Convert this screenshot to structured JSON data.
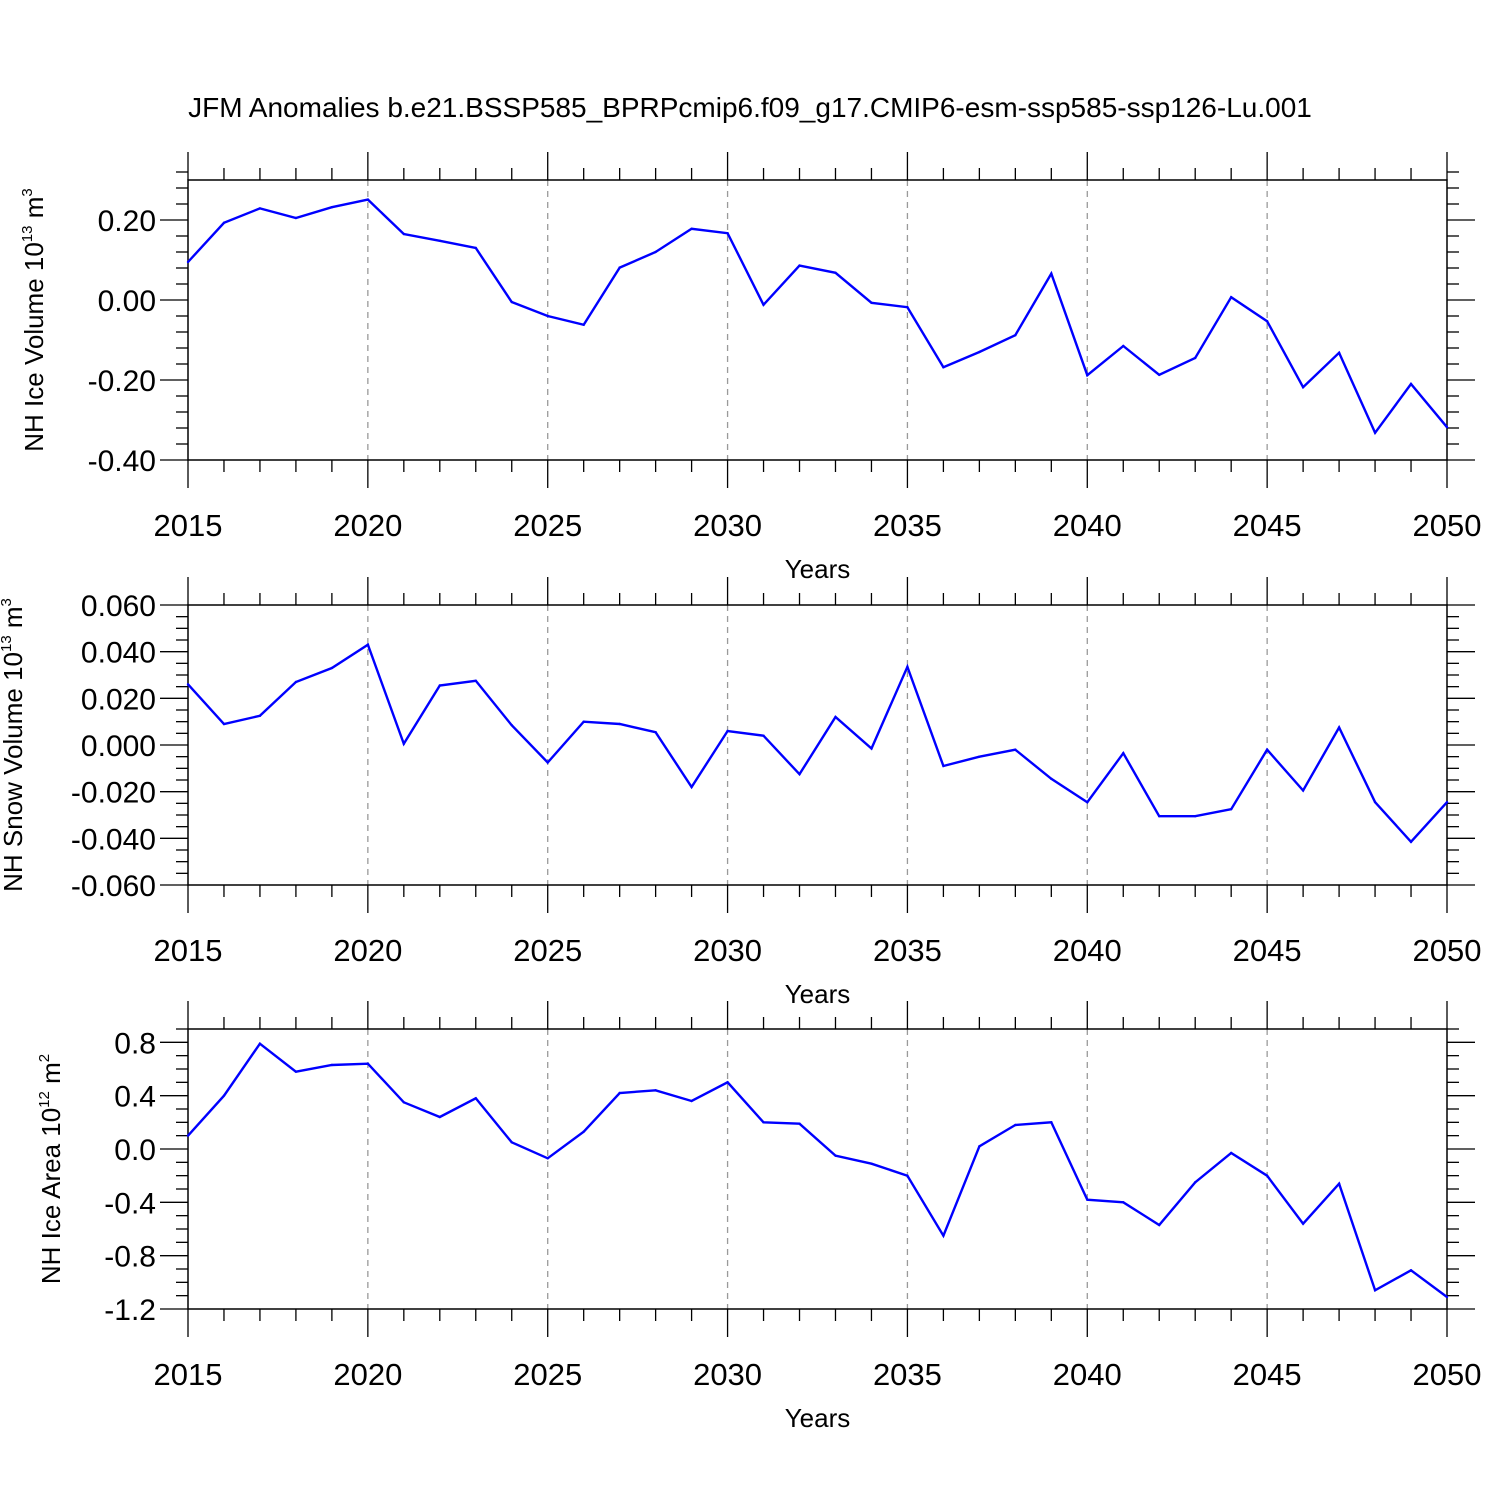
{
  "title": "JFM Anomalies b.e21.BSSP585_BPRPcmip6.f09_g17.CMIP6-esm-ssp585-ssp126-Lu.001",
  "colors": {
    "line": "#0000ff",
    "axis": "#000000",
    "grid": "#9a9a9a"
  },
  "chart_data": [
    {
      "type": "line",
      "ylabel_main": "NH Ice Volume 10",
      "ylabel_exp": "13",
      "ylabel_unit": " m",
      "ylabel_unit_exp": "3",
      "xlabel": "Years",
      "xlim": [
        2015,
        2050
      ],
      "ylim": [
        -0.4,
        0.3
      ],
      "yticks": [
        -0.4,
        -0.2,
        0.0,
        0.2
      ],
      "ytick_labels": [
        "-0.40",
        "-0.20",
        "0.00",
        "0.20"
      ],
      "yminor_step": 0.04,
      "xticks": [
        2015,
        2020,
        2025,
        2030,
        2035,
        2040,
        2045,
        2050
      ],
      "xtick_labels": [
        "2015",
        "2020",
        "2025",
        "2030",
        "2035",
        "2040",
        "2045",
        "2050"
      ],
      "x": [
        2015,
        2016,
        2017,
        2018,
        2019,
        2020,
        2021,
        2022,
        2023,
        2024,
        2025,
        2026,
        2027,
        2028,
        2029,
        2030,
        2031,
        2032,
        2033,
        2034,
        2035,
        2036,
        2037,
        2038,
        2039,
        2040,
        2041,
        2042,
        2043,
        2044,
        2045,
        2046,
        2047,
        2048,
        2049,
        2050
      ],
      "values": [
        0.095,
        0.193,
        0.229,
        0.205,
        0.232,
        0.251,
        0.165,
        0.148,
        0.13,
        -0.005,
        -0.04,
        -0.062,
        0.081,
        0.12,
        0.178,
        0.167,
        -0.012,
        0.086,
        0.068,
        -0.007,
        -0.018,
        -0.168,
        -0.13,
        -0.088,
        0.066,
        -0.188,
        -0.115,
        -0.187,
        -0.145,
        0.007,
        -0.053,
        -0.218,
        -0.132,
        -0.332,
        -0.21,
        -0.318
      ]
    },
    {
      "type": "line",
      "ylabel_main": "NH Snow Volume 10",
      "ylabel_exp": "13",
      "ylabel_unit": " m",
      "ylabel_unit_exp": "3",
      "xlabel": "Years",
      "xlim": [
        2015,
        2050
      ],
      "ylim": [
        -0.06,
        0.06
      ],
      "yticks": [
        -0.06,
        -0.04,
        -0.02,
        0.0,
        0.02,
        0.04,
        0.06
      ],
      "ytick_labels": [
        "-0.060",
        "-0.040",
        "-0.020",
        "0.000",
        "0.020",
        "0.040",
        "0.060"
      ],
      "yminor_step": 0.005,
      "xticks": [
        2015,
        2020,
        2025,
        2030,
        2035,
        2040,
        2045,
        2050
      ],
      "xtick_labels": [
        "2015",
        "2020",
        "2025",
        "2030",
        "2035",
        "2040",
        "2045",
        "2050"
      ],
      "x": [
        2015,
        2016,
        2017,
        2018,
        2019,
        2020,
        2021,
        2022,
        2023,
        2024,
        2025,
        2026,
        2027,
        2028,
        2029,
        2030,
        2031,
        2032,
        2033,
        2034,
        2035,
        2036,
        2037,
        2038,
        2039,
        2040,
        2041,
        2042,
        2043,
        2044,
        2045,
        2046,
        2047,
        2048,
        2049,
        2050
      ],
      "values": [
        0.026,
        0.009,
        0.0125,
        0.027,
        0.033,
        0.043,
        0.0005,
        0.0255,
        0.0275,
        0.0085,
        -0.0075,
        0.01,
        0.009,
        0.0055,
        -0.018,
        0.006,
        0.004,
        -0.0125,
        0.012,
        -0.0015,
        0.0335,
        -0.009,
        -0.005,
        -0.002,
        -0.0145,
        -0.0245,
        -0.0035,
        -0.0305,
        -0.0305,
        -0.0275,
        -0.002,
        -0.0195,
        0.0075,
        -0.0245,
        -0.0415,
        -0.0245
      ]
    },
    {
      "type": "line",
      "ylabel_main": "NH Ice Area 10",
      "ylabel_exp": "12",
      "ylabel_unit": " m",
      "ylabel_unit_exp": "2",
      "xlabel": "Years",
      "xlim": [
        2015,
        2050
      ],
      "ylim": [
        -1.2,
        0.9
      ],
      "yticks": [
        -1.2,
        -0.8,
        -0.4,
        0.0,
        0.4,
        0.8
      ],
      "ytick_labels": [
        "-1.2",
        "-0.8",
        "-0.4",
        "0.0",
        "0.4",
        "0.8"
      ],
      "yminor_step": 0.1,
      "xticks": [
        2015,
        2020,
        2025,
        2030,
        2035,
        2040,
        2045,
        2050
      ],
      "xtick_labels": [
        "2015",
        "2020",
        "2025",
        "2030",
        "2035",
        "2040",
        "2045",
        "2050"
      ],
      "x": [
        2015,
        2016,
        2017,
        2018,
        2019,
        2020,
        2021,
        2022,
        2023,
        2024,
        2025,
        2026,
        2027,
        2028,
        2029,
        2030,
        2031,
        2032,
        2033,
        2034,
        2035,
        2036,
        2037,
        2038,
        2039,
        2040,
        2041,
        2042,
        2043,
        2044,
        2045,
        2046,
        2047,
        2048,
        2049,
        2050
      ],
      "values": [
        0.1,
        0.4,
        0.79,
        0.58,
        0.63,
        0.64,
        0.35,
        0.24,
        0.38,
        0.05,
        -0.07,
        0.13,
        0.42,
        0.44,
        0.36,
        0.5,
        0.2,
        0.19,
        -0.05,
        -0.11,
        -0.2,
        -0.65,
        0.02,
        0.18,
        0.2,
        -0.38,
        -0.4,
        -0.57,
        -0.25,
        -0.03,
        -0.2,
        -0.56,
        -0.26,
        -1.06,
        -0.91,
        -1.11
      ]
    }
  ]
}
